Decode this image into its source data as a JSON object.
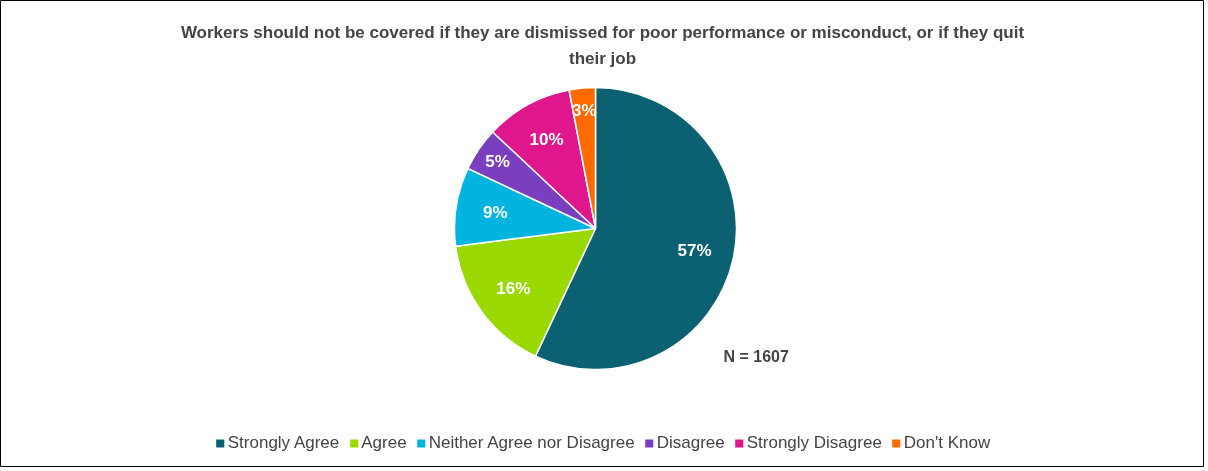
{
  "chart_data": {
    "type": "pie",
    "title": "Workers should not be covered if they are dismissed for poor performance or misconduct, or if they quit their job",
    "categories": [
      "Strongly Agree",
      "Agree",
      "Neither Agree nor Disagree",
      "Disagree",
      "Strongly Disagree",
      "Don't Know"
    ],
    "values": [
      57,
      16,
      9,
      5,
      10,
      3
    ],
    "value_labels": [
      "57%",
      "16%",
      "9%",
      "5%",
      "10%",
      "3%"
    ],
    "colors": [
      "#0b6172",
      "#99d800",
      "#00b4e0",
      "#7a3ebf",
      "#e0168c",
      "#ff6a00"
    ],
    "legend": "bottom",
    "annotations": [
      "N = 1607"
    ]
  }
}
